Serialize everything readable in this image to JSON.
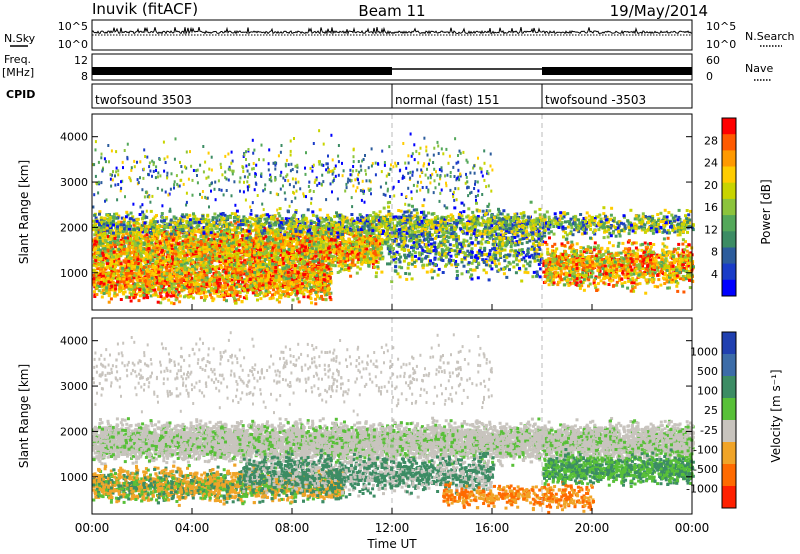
{
  "header": {
    "station": "Inuvik (fitACF)",
    "beam": "Beam 11",
    "date": "19/May/2014"
  },
  "left_labels": {
    "nsky": "N.Sky",
    "freq": "Freq.",
    "freq_unit": "[MHz]",
    "cpid": "CPID"
  },
  "right_labels": {
    "nsearch": "N.Search",
    "nave": "Nave"
  },
  "noise_axis": {
    "left_ticks": [
      "10^5",
      "10^0"
    ],
    "right_ticks": [
      "10^5",
      "10^0"
    ]
  },
  "freq_axis": {
    "left_ticks": [
      "12",
      "8"
    ],
    "right_ticks": [
      "60",
      "0"
    ]
  },
  "cpid_segments": [
    {
      "label": "twofsound 3503",
      "start_hour": 0,
      "end_hour": 12
    },
    {
      "label": "normal (fast) 151",
      "start_hour": 12,
      "end_hour": 18
    },
    {
      "label": "twofsound -3503",
      "start_hour": 18,
      "end_hour": 24
    }
  ],
  "chart_data": [
    {
      "type": "heatmap",
      "name": "power",
      "ylabel": "Slant Range [km]",
      "colorbar_label": "Power [dB]",
      "colorbar_ticks": [
        "28",
        "24",
        "20",
        "16",
        "12",
        "8",
        "4"
      ],
      "colorbar_colors": [
        "#ff0000",
        "#ff5a00",
        "#ff9900",
        "#ffcc00",
        "#c8d400",
        "#8cc43c",
        "#54a85a",
        "#3c8c64",
        "#2c5c9c",
        "#1a3cc8",
        "#0000ff"
      ],
      "ylim": [
        180,
        4500
      ],
      "yticks": [
        "4000",
        "3000",
        "2000",
        "1000"
      ],
      "ytick_values": [
        4000,
        3000,
        2000,
        1000
      ],
      "xlim": [
        0,
        24
      ]
    },
    {
      "type": "heatmap",
      "name": "velocity",
      "ylabel": "Slant Range [km]",
      "xlabel": "Time UT",
      "colorbar_label": "Velocity [m s⁻¹]",
      "colorbar_ticks": [
        "1000",
        "500",
        "100",
        "25",
        "-25",
        "-100",
        "-500",
        "-1000"
      ],
      "colorbar_colors": [
        "#2040b0",
        "#3c6ca8",
        "#3c8c64",
        "#58c038",
        "#c8c4be",
        "#f0a428",
        "#ff6a00",
        "#ff2000"
      ],
      "ylim": [
        180,
        4500
      ],
      "yticks": [
        "4000",
        "3000",
        "2000",
        "1000"
      ],
      "ytick_values": [
        4000,
        3000,
        2000,
        1000
      ],
      "xlim": [
        0,
        24
      ],
      "xticks": [
        "00:00",
        "04:00",
        "08:00",
        "12:00",
        "16:00",
        "20:00",
        "00:00"
      ],
      "xtick_hours": [
        0,
        4,
        8,
        12,
        16,
        20,
        24
      ]
    }
  ]
}
